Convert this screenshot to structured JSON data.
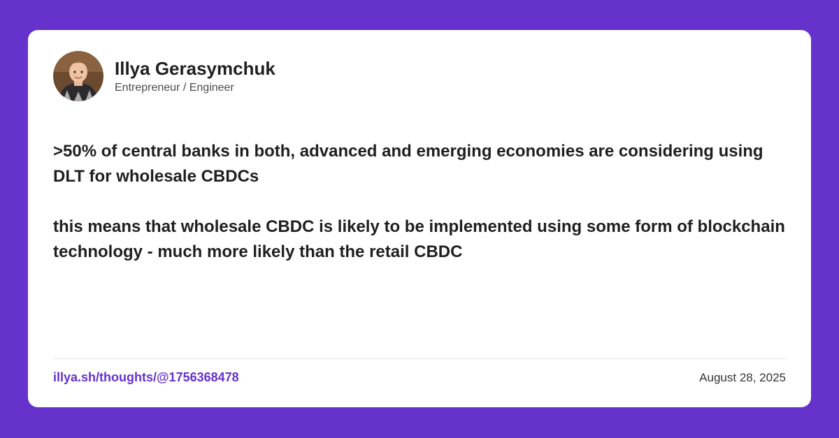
{
  "author": {
    "name": "Illya Gerasymchuk",
    "role": "Entrepreneur / Engineer",
    "avatar_icon": "person-photo-avatar"
  },
  "post": {
    "paragraphs": [
      ">50% of central banks in both, advanced and emerging economies are considering using DLT for wholesale CBDCs",
      "this means that wholesale CBDC is likely to be implemented using some form of blockchain technology - much more likely than the retail CBDC"
    ]
  },
  "footer": {
    "link": "illya.sh/thoughts/@1756368478",
    "date": "August 28, 2025"
  },
  "colors": {
    "background": "#6632cc",
    "card": "#ffffff",
    "accent": "#6632cc",
    "text": "#1f1f1f"
  }
}
